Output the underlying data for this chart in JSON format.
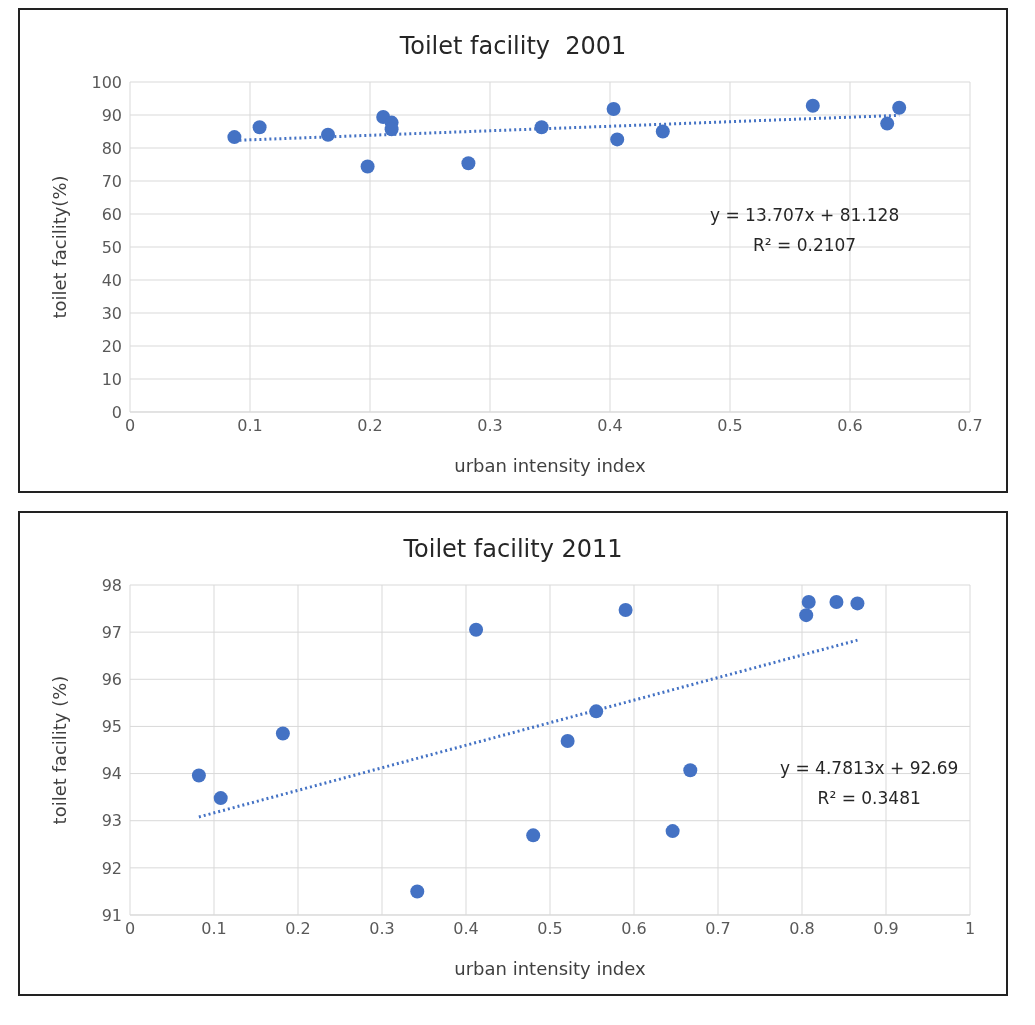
{
  "chart_data": [
    {
      "type": "scatter",
      "title": "Toilet facility  2001",
      "xlabel": "urban intensity index",
      "ylabel": "toilet facility(%)",
      "xlim": [
        0,
        0.7
      ],
      "xticks": [
        0,
        0.1,
        0.2,
        0.3,
        0.4,
        0.5,
        0.6,
        0.7
      ],
      "ylim": [
        0,
        100
      ],
      "yticks": [
        0,
        10,
        20,
        30,
        40,
        50,
        60,
        70,
        80,
        90,
        100
      ],
      "grid": true,
      "legend": false,
      "marker": "circle",
      "series": [
        {
          "color": "#4472c4",
          "x": [
            0.087,
            0.108,
            0.165,
            0.198,
            0.211,
            0.218,
            0.218,
            0.282,
            0.343,
            0.403,
            0.406,
            0.444,
            0.569,
            0.631,
            0.641
          ],
          "values": [
            83.3,
            86.3,
            84,
            74.4,
            89.4,
            87.7,
            85.7,
            75.4,
            86.3,
            91.8,
            82.6,
            85,
            92.8,
            87.4,
            92.2
          ]
        },
        {
          "type": "line",
          "color": "#4472c4",
          "line_style": "dotted",
          "marker": "none",
          "x": [
            0.087,
            0.641
          ],
          "values": [
            82.3,
            89.9
          ]
        }
      ],
      "annotations": [
        "y = 13.707x + 81.128",
        "R² = 0.2107"
      ]
    },
    {
      "type": "scatter",
      "title": "Toilet facility 2011",
      "xlabel": "urban intensity index",
      "ylabel": "toilet facility (%)",
      "xlim": [
        0,
        1
      ],
      "xticks": [
        0,
        0.1,
        0.2,
        0.3,
        0.4,
        0.5,
        0.6,
        0.7,
        0.8,
        0.9,
        1
      ],
      "ylim": [
        91,
        98
      ],
      "yticks": [
        91,
        92,
        93,
        94,
        95,
        96,
        97,
        98
      ],
      "grid": true,
      "legend": false,
      "marker": "circle",
      "series": [
        {
          "color": "#4472c4",
          "x": [
            0.082,
            0.108,
            0.182,
            0.342,
            0.412,
            0.48,
            0.521,
            0.555,
            0.59,
            0.646,
            0.667,
            0.805,
            0.808,
            0.841,
            0.866
          ],
          "values": [
            93.96,
            93.48,
            94.85,
            91.5,
            97.05,
            92.69,
            94.69,
            95.32,
            97.47,
            92.78,
            94.07,
            97.36,
            97.64,
            97.64,
            97.61
          ]
        },
        {
          "type": "line",
          "color": "#4472c4",
          "line_style": "dotted",
          "marker": "none",
          "x": [
            0.082,
            0.866
          ],
          "values": [
            93.08,
            96.83
          ]
        }
      ],
      "annotations": [
        "y = 4.7813x + 92.69",
        "R² = 0.3481"
      ]
    }
  ]
}
